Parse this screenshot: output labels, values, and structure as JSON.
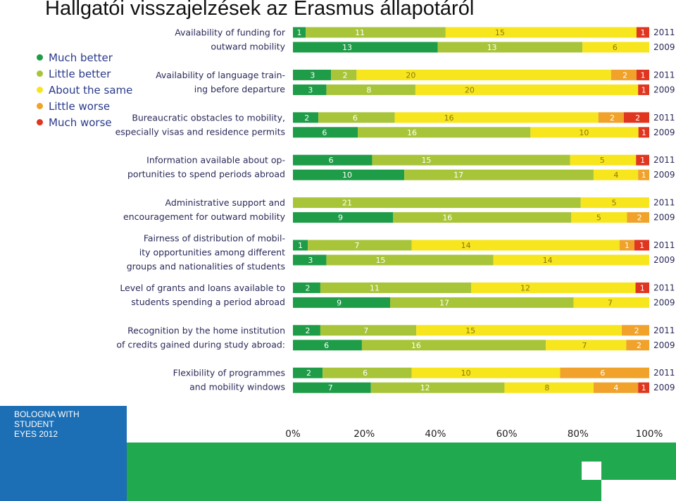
{
  "title": "Hallgatói visszajelzések az Erasmus állapotáról",
  "legend": [
    {
      "label": "Much better",
      "color": "#1e9c48"
    },
    {
      "label": "Little better",
      "color": "#a8c53a"
    },
    {
      "label": "About the same",
      "color": "#f7e51e"
    },
    {
      "label": "Little worse",
      "color": "#f0a22a"
    },
    {
      "label": "Much worse",
      "color": "#e0351f"
    }
  ],
  "logo": {
    "text": "BOLOGNA WITH\nSTUDENT\nEYES 2012"
  },
  "chart_data": {
    "type": "bar",
    "stacked": "percent",
    "orientation": "horizontal",
    "series_names": [
      "Much better",
      "Little better",
      "About the same",
      "Little worse",
      "Much worse"
    ],
    "colors": [
      "#1e9c48",
      "#a8c53a",
      "#f7e51e",
      "#f0a22a",
      "#e0351f"
    ],
    "x_ticks": [
      "0%",
      "20%",
      "40%",
      "60%",
      "80%",
      "100%"
    ],
    "xlim": [
      0,
      100
    ],
    "groups": [
      {
        "label": [
          "Availability of funding for",
          "outward mobility"
        ],
        "rows": [
          {
            "year": "2011",
            "values": [
              1,
              11,
              15,
              0,
              1
            ]
          },
          {
            "year": "2009",
            "values": [
              13,
              13,
              6,
              0,
              0
            ]
          }
        ]
      },
      {
        "label": [
          "Availability of language train-",
          "ing before departure"
        ],
        "rows": [
          {
            "year": "2011",
            "values": [
              3,
              2,
              20,
              2,
              1
            ]
          },
          {
            "year": "2009",
            "values": [
              3,
              8,
              20,
              0,
              1
            ]
          }
        ]
      },
      {
        "label": [
          "Bureaucratic obstacles to mobility,",
          "especially visas and residence permits"
        ],
        "rows": [
          {
            "year": "2011",
            "values": [
              2,
              6,
              16,
              2,
              2
            ]
          },
          {
            "year": "2009",
            "values": [
              6,
              16,
              10,
              0,
              1
            ]
          }
        ]
      },
      {
        "label": [
          "Information available about op-",
          "portunities to spend periods abroad"
        ],
        "rows": [
          {
            "year": "2011",
            "values": [
              6,
              15,
              5,
              0,
              1
            ]
          },
          {
            "year": "2009",
            "values": [
              10,
              17,
              4,
              1,
              0
            ]
          }
        ]
      },
      {
        "label": [
          "Administrative support and",
          "encouragement for outward mobility"
        ],
        "rows": [
          {
            "year": "2011",
            "values": [
              0,
              21,
              5,
              0,
              0
            ]
          },
          {
            "year": "2009",
            "values": [
              9,
              16,
              5,
              2,
              0
            ]
          }
        ]
      },
      {
        "label": [
          "Fairness of distribution of mobil-",
          "ity opportunities among different",
          "groups and nationalities of students"
        ],
        "rows": [
          {
            "year": "2011",
            "values": [
              1,
              7,
              14,
              1,
              1
            ]
          },
          {
            "year": "2009",
            "values": [
              3,
              15,
              14,
              0,
              0
            ]
          }
        ]
      },
      {
        "label": [
          "Level of grants and loans available to",
          "students spending a period abroad"
        ],
        "rows": [
          {
            "year": "2011",
            "values": [
              2,
              11,
              12,
              0,
              1
            ]
          },
          {
            "year": "2009",
            "values": [
              9,
              17,
              7,
              0,
              0
            ]
          }
        ]
      },
      {
        "label": [
          "Recognition by the home institution",
          "of credits gained during study abroad:"
        ],
        "rows": [
          {
            "year": "2011",
            "values": [
              2,
              7,
              15,
              2,
              0
            ]
          },
          {
            "year": "2009",
            "values": [
              6,
              16,
              7,
              2,
              0
            ]
          }
        ]
      },
      {
        "label": [
          "Flexibility of programmes",
          "and mobility windows"
        ],
        "rows": [
          {
            "year": "2011",
            "values": [
              2,
              6,
              10,
              6,
              0
            ]
          },
          {
            "year": "2009",
            "values": [
              7,
              12,
              8,
              4,
              1
            ]
          }
        ]
      }
    ]
  }
}
